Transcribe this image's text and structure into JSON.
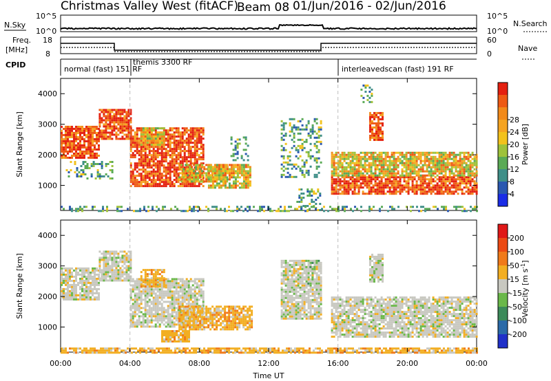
{
  "header": {
    "title_left": "Christmas Valley West (fitACF)",
    "title_beam": "Beam 08",
    "title_dates": "01/Jun/2016 - 02/Jun/2016"
  },
  "panels": {
    "nsky_label": "N.Sky",
    "nsearch_label": "N.Search",
    "freq_label_1": "Freq.",
    "freq_label_2": "[MHz]",
    "nave_label": "Nave",
    "cpid_label": "CPID",
    "nsky_ticks": [
      "10^5",
      "10^0"
    ],
    "nsearch_ticks": [
      "10^5",
      "10^0"
    ],
    "freq_ticks": [
      "18",
      "8"
    ],
    "nave_ticks": [
      "60",
      "0"
    ]
  },
  "cpid": {
    "segments": [
      {
        "label": "normal (fast) 151 RF"
      },
      {
        "label": "themis 3300 RF"
      },
      {
        "label": "interleavedscan (fast) 191 RF"
      }
    ]
  },
  "chart_data": [
    {
      "type": "heatmap",
      "name": "power",
      "ylabel": "Slant Range [km]",
      "xlabel": "",
      "x_tick_labels": [
        "00:00",
        "04:00",
        "08:00",
        "12:00",
        "16:00",
        "20:00",
        "00:00"
      ],
      "x_ticks_hours": [
        0,
        4,
        8,
        12,
        16,
        20,
        24
      ],
      "y_ticks": [
        1000,
        2000,
        3000,
        4000
      ],
      "ylim": [
        180,
        4500
      ],
      "xlim_hours": [
        0,
        24
      ],
      "colorbar": {
        "label": "Power [dB]",
        "ticks": [
          "4",
          "8",
          "12",
          "16",
          "20",
          "24",
          "28"
        ],
        "colors": [
          "#1a2ce6",
          "#2a58b0",
          "#3f8f88",
          "#5aaa55",
          "#9ec23a",
          "#f2c21c",
          "#f5a422",
          "#f28a1a",
          "#ee5a14",
          "#e42010"
        ]
      },
      "vertical_markers_hours": [
        4.0,
        16.0
      ],
      "regions": [
        {
          "t0": 0.0,
          "t1": 2.2,
          "r0": 1900,
          "r1": 2950,
          "level": "high"
        },
        {
          "t0": 2.2,
          "t1": 4.0,
          "r0": 2500,
          "r1": 3500,
          "level": "high"
        },
        {
          "t0": 4.0,
          "t1": 8.2,
          "r0": 1000,
          "r1": 2900,
          "level": "high"
        },
        {
          "t0": 4.6,
          "t1": 6.0,
          "r0": 2300,
          "r1": 2900,
          "level": "medium"
        },
        {
          "t0": 6.8,
          "t1": 9.6,
          "r0": 1100,
          "r1": 1700,
          "level": "medium"
        },
        {
          "t0": 8.5,
          "t1": 11.0,
          "r0": 900,
          "r1": 1700,
          "level": "medium"
        },
        {
          "t0": 9.8,
          "t1": 10.8,
          "r0": 1800,
          "r1": 2600,
          "level": "low"
        },
        {
          "t0": 12.7,
          "t1": 15.0,
          "r0": 1300,
          "r1": 3200,
          "level": "low"
        },
        {
          "t0": 13.6,
          "t1": 15.0,
          "r0": 200,
          "r1": 900,
          "level": "low"
        },
        {
          "t0": 15.6,
          "t1": 24.0,
          "r0": 700,
          "r1": 1300,
          "level": "high"
        },
        {
          "t0": 15.6,
          "t1": 24.0,
          "r0": 1300,
          "r1": 2100,
          "level": "medium"
        },
        {
          "t0": 17.8,
          "t1": 18.6,
          "r0": 2500,
          "r1": 3400,
          "level": "high"
        },
        {
          "t0": 17.3,
          "t1": 17.9,
          "r0": 3700,
          "r1": 4300,
          "level": "low"
        },
        {
          "t0": 0.0,
          "t1": 24.0,
          "r0": 180,
          "r1": 330,
          "level": "low"
        },
        {
          "t0": 0.3,
          "t1": 3.0,
          "r0": 1200,
          "r1": 1800,
          "level": "low"
        }
      ]
    },
    {
      "type": "heatmap",
      "name": "velocity",
      "ylabel": "Slant Range [km]",
      "xlabel": "Time UT",
      "x_tick_labels": [
        "00:00",
        "04:00",
        "08:00",
        "12:00",
        "16:00",
        "20:00",
        "00:00"
      ],
      "x_ticks_hours": [
        0,
        4,
        8,
        12,
        16,
        20,
        24
      ],
      "y_ticks": [
        1000,
        2000,
        3000,
        4000
      ],
      "ylim": [
        180,
        4500
      ],
      "xlim_hours": [
        0,
        24
      ],
      "colorbar": {
        "label": "Velocity [m s^-1]",
        "ticks": [
          "200",
          "100",
          "50",
          "15",
          "-15",
          "-50",
          "-100",
          "-200"
        ],
        "colors": [
          "#2030c8",
          "#2a6aa8",
          "#3c8a5a",
          "#6ab84a",
          "#c8c8c0",
          "#f2ae22",
          "#f07a1a",
          "#ec4a14",
          "#e01818"
        ]
      },
      "vertical_markers_hours": [
        4.0,
        16.0
      ],
      "regions": [
        {
          "t0": 0.0,
          "t1": 2.2,
          "r0": 1900,
          "r1": 2950,
          "level": "gray"
        },
        {
          "t0": 2.2,
          "t1": 4.0,
          "r0": 2500,
          "r1": 3500,
          "level": "gray"
        },
        {
          "t0": 4.0,
          "t1": 8.2,
          "r0": 1000,
          "r1": 2600,
          "level": "gray"
        },
        {
          "t0": 4.6,
          "t1": 6.0,
          "r0": 2300,
          "r1": 2900,
          "level": "orange"
        },
        {
          "t0": 6.8,
          "t1": 11.0,
          "r0": 900,
          "r1": 1700,
          "level": "orange"
        },
        {
          "t0": 5.8,
          "t1": 7.4,
          "r0": 500,
          "r1": 900,
          "level": "orange"
        },
        {
          "t0": 12.7,
          "t1": 15.0,
          "r0": 1300,
          "r1": 3200,
          "level": "gray"
        },
        {
          "t0": 14.0,
          "t1": 15.0,
          "r0": 2200,
          "r1": 3200,
          "level": "green"
        },
        {
          "t0": 15.6,
          "t1": 24.0,
          "r0": 700,
          "r1": 2000,
          "level": "gray"
        },
        {
          "t0": 17.8,
          "t1": 18.6,
          "r0": 2500,
          "r1": 3400,
          "level": "gray"
        },
        {
          "t0": 0.0,
          "t1": 24.0,
          "r0": 180,
          "r1": 330,
          "level": "orange"
        }
      ]
    }
  ]
}
